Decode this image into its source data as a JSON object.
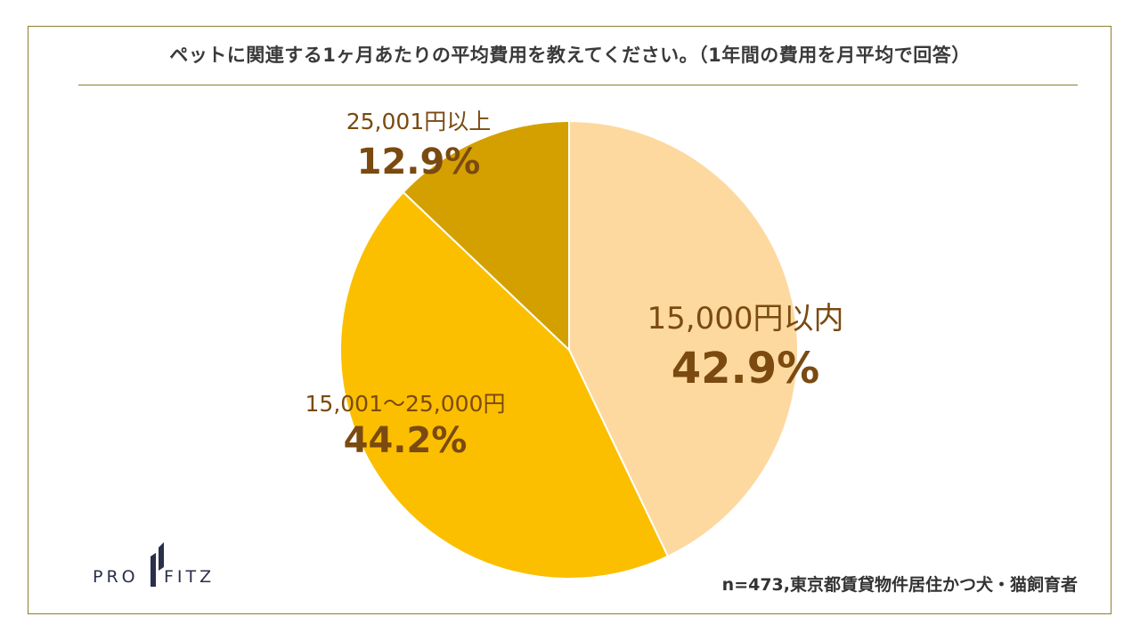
{
  "title": "ペットに関連する1ヶ月あたりの平均費用を教えてください。（1年間の費用を月平均で回答）",
  "note": "n=473,東京都賃貸物件居住かつ犬・猫飼育者",
  "logo": {
    "left_text": "PRO",
    "right_text": "FITZ"
  },
  "colors": {
    "frame": "#8a7f2e",
    "label": "#7a4a10",
    "slice_1": "#fdd9a0",
    "slice_2": "#fbbf00",
    "slice_3": "#d4a000",
    "logo": "#2a2f4a"
  },
  "chart_data": {
    "type": "pie",
    "title": "ペットに関連する1ヶ月あたりの平均費用を教えてください。（1年間の費用を月平均で回答）",
    "start": "12 o'clock, clockwise",
    "slices": [
      {
        "label": "15,000円以内",
        "value": 42.9,
        "value_label": "42.9%",
        "color": "#fdd9a0"
      },
      {
        "label": "15,001～25,000円",
        "value": 44.2,
        "value_label": "44.2%",
        "color": "#fbbf00"
      },
      {
        "label": "25,001円以上",
        "value": 12.9,
        "value_label": "12.9%",
        "color": "#d4a000"
      }
    ]
  }
}
